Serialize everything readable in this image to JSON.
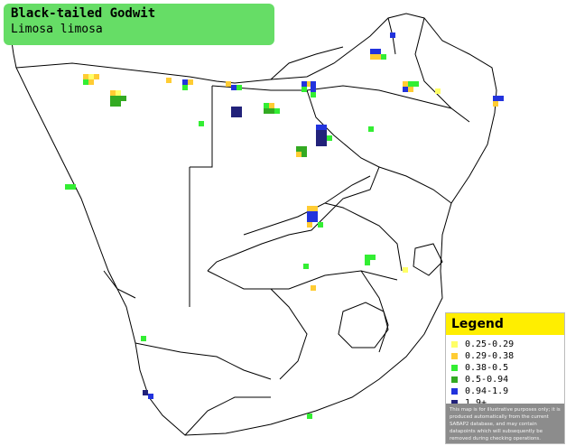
{
  "title": {
    "common_name": "Black-tailed Godwit",
    "scientific_name": "Limosa limosa"
  },
  "legend": {
    "heading": "Legend",
    "items": [
      {
        "label": "0.25-0.29",
        "color": "#ffff66"
      },
      {
        "label": "0.29-0.38",
        "color": "#ffcc33"
      },
      {
        "label": "0.38-0.5",
        "color": "#33ee33"
      },
      {
        "label": "0.5-0.94",
        "color": "#33aa22"
      },
      {
        "label": "0.94-1.9",
        "color": "#2233dd"
      },
      {
        "label": "1.9+",
        "color": "#22227a"
      }
    ],
    "disclaimer": "This map is for illustrative purposes only; it is produced automatically from the current SABAP2 database, and may contain datapoints which will subsequently be removed during checking operations."
  },
  "colors": {
    "title_bg": "#66dd66",
    "legend_header_bg": "#ffee00",
    "border": "#000000"
  }
}
